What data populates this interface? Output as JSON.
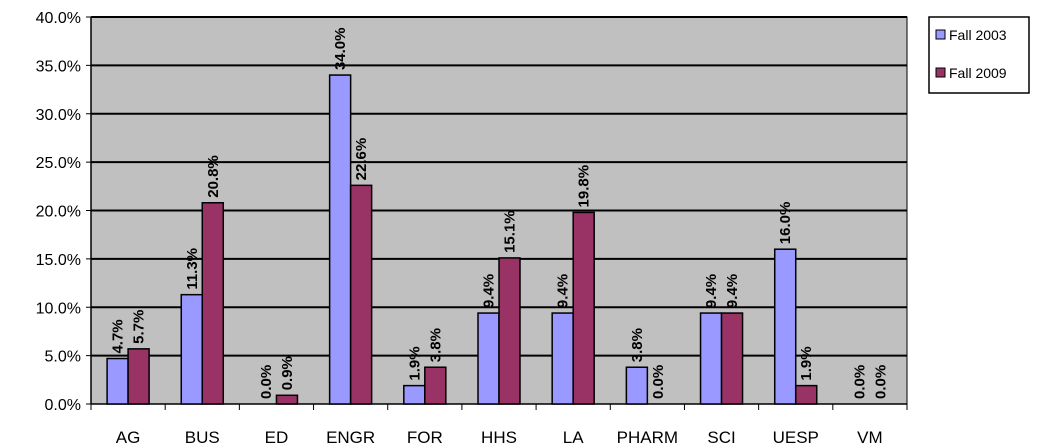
{
  "chart_data": {
    "type": "bar",
    "categories": [
      "AG",
      "BUS",
      "ED",
      "ENGR",
      "FOR",
      "HHS",
      "LA",
      "PHARM",
      "SCI",
      "UESP",
      "VM"
    ],
    "series": [
      {
        "name": "Fall 2003",
        "values": [
          4.7,
          11.3,
          0.0,
          34.0,
          1.9,
          9.4,
          9.4,
          3.8,
          9.4,
          16.0,
          0.0
        ],
        "labels": [
          "4.7%",
          "11.3%",
          "0.0%",
          "34.0%",
          "1.9%",
          "9.4%",
          "9.4%",
          "3.8%",
          "9.4%",
          "16.0%",
          "0.0%"
        ],
        "color": "#9999ff"
      },
      {
        "name": "Fall 2009",
        "values": [
          5.7,
          20.8,
          0.9,
          22.6,
          3.8,
          15.1,
          19.8,
          0.0,
          9.4,
          1.9,
          0.0
        ],
        "labels": [
          "5.7%",
          "20.8%",
          "0.9%",
          "22.6%",
          "3.8%",
          "15.1%",
          "19.8%",
          "0.0%",
          "9.4%",
          "1.9%",
          "0.0%"
        ],
        "color": "#993366"
      }
    ],
    "ylim": [
      0,
      40
    ],
    "yticks": [
      "0.0%",
      "5.0%",
      "10.0%",
      "15.0%",
      "20.0%",
      "25.0%",
      "30.0%",
      "35.0%",
      "40.0%"
    ],
    "grid": true,
    "plot_background": "#c0c0c0",
    "legend_position": "right"
  }
}
